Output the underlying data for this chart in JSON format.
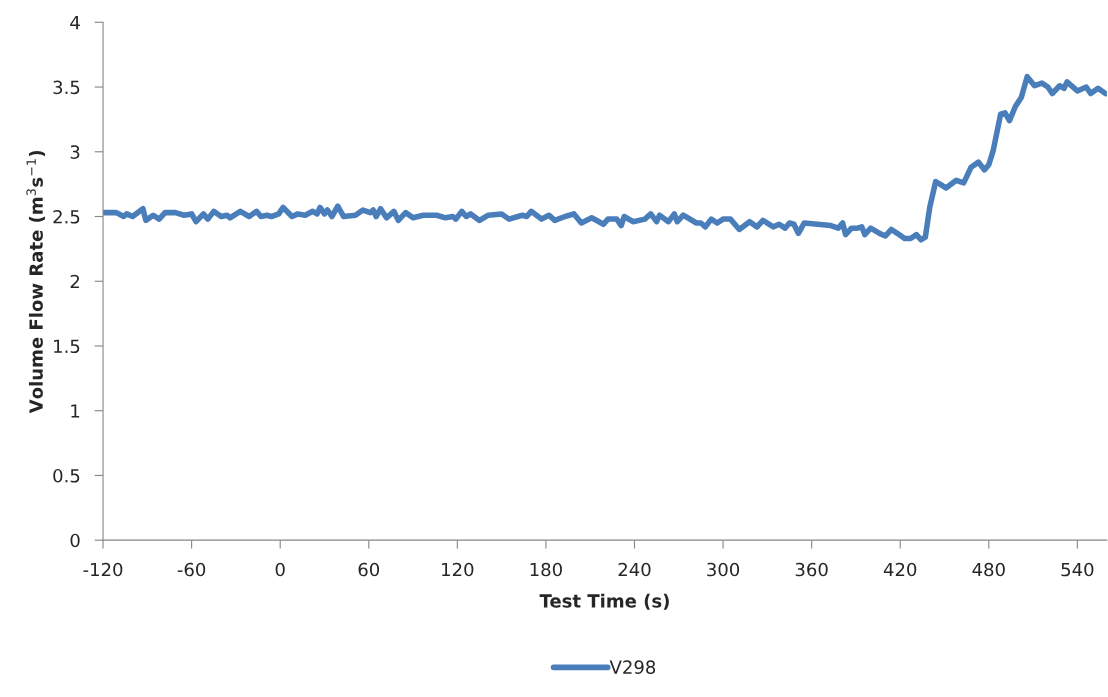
{
  "chart_data": {
    "type": "line",
    "xlabel": "Test Time (s)",
    "ylabel": "Volume Flow Rate (m$^{3}$s$^{−1}$)",
    "xlim": [
      -120,
      560
    ],
    "xticks": [
      -120,
      -60,
      0,
      60,
      120,
      180,
      240,
      300,
      360,
      420,
      480,
      540
    ],
    "ylim": [
      0,
      4
    ],
    "yticks": [
      0,
      0.5,
      1,
      1.5,
      2,
      2.5,
      3,
      3.5,
      4
    ],
    "grid": false,
    "legend": "bottom",
    "marker": "none",
    "line_style": "solid",
    "series": [
      {
        "name": "V298",
        "color": "#4a7ebb",
        "x": [
          -120,
          -111,
          -106,
          -104,
          -100,
          -93,
          -91,
          -86,
          -82,
          -78,
          -71,
          -65,
          -60,
          -57,
          -52,
          -49,
          -45,
          -40,
          -36,
          -34,
          -27,
          -21,
          -16,
          -13,
          -9,
          -6,
          -1,
          2,
          8,
          12,
          17,
          22,
          25,
          27,
          30,
          32,
          35,
          39,
          43,
          51,
          56,
          61,
          63,
          65,
          68,
          72,
          77,
          80,
          85,
          90,
          97,
          106,
          112,
          117,
          119,
          123,
          126,
          129,
          135,
          141,
          150,
          155,
          164,
          167,
          170,
          177,
          182,
          186,
          193,
          199,
          204,
          211,
          219,
          222,
          228,
          231,
          233,
          239,
          247,
          251,
          255,
          257,
          263,
          267,
          269,
          273,
          282,
          285,
          288,
          292,
          296,
          300,
          305,
          311,
          318,
          323,
          327,
          334,
          338,
          342,
          345,
          348,
          351,
          355,
          364,
          373,
          378,
          381,
          383,
          387,
          391,
          394,
          396,
          400,
          406,
          410,
          414,
          418,
          423,
          427,
          431,
          434,
          437,
          440,
          444,
          447,
          451,
          458,
          463,
          468,
          473,
          477,
          480,
          483,
          488,
          491,
          494,
          498,
          502,
          506,
          511,
          516,
          520,
          523,
          528,
          531,
          533,
          540,
          546,
          549,
          554,
          559
        ],
        "values": [
          2.53,
          2.53,
          2.5,
          2.52,
          2.5,
          2.56,
          2.47,
          2.51,
          2.48,
          2.53,
          2.53,
          2.51,
          2.52,
          2.46,
          2.52,
          2.48,
          2.54,
          2.5,
          2.51,
          2.49,
          2.54,
          2.5,
          2.54,
          2.5,
          2.51,
          2.5,
          2.52,
          2.57,
          2.5,
          2.52,
          2.51,
          2.54,
          2.52,
          2.57,
          2.52,
          2.55,
          2.5,
          2.58,
          2.5,
          2.51,
          2.55,
          2.53,
          2.55,
          2.5,
          2.56,
          2.49,
          2.54,
          2.47,
          2.53,
          2.49,
          2.51,
          2.51,
          2.49,
          2.5,
          2.48,
          2.54,
          2.5,
          2.52,
          2.47,
          2.51,
          2.52,
          2.48,
          2.51,
          2.5,
          2.54,
          2.48,
          2.51,
          2.47,
          2.5,
          2.52,
          2.45,
          2.49,
          2.44,
          2.48,
          2.48,
          2.43,
          2.5,
          2.46,
          2.48,
          2.52,
          2.46,
          2.51,
          2.46,
          2.52,
          2.46,
          2.51,
          2.45,
          2.45,
          2.42,
          2.48,
          2.45,
          2.48,
          2.48,
          2.4,
          2.46,
          2.42,
          2.47,
          2.42,
          2.44,
          2.41,
          2.45,
          2.44,
          2.37,
          2.45,
          2.44,
          2.43,
          2.41,
          2.45,
          2.36,
          2.41,
          2.41,
          2.42,
          2.36,
          2.41,
          2.37,
          2.35,
          2.4,
          2.37,
          2.33,
          2.33,
          2.36,
          2.32,
          2.34,
          2.57,
          2.77,
          2.75,
          2.72,
          2.78,
          2.76,
          2.88,
          2.92,
          2.86,
          2.9,
          3.01,
          3.29,
          3.3,
          3.24,
          3.35,
          3.42,
          3.58,
          3.51,
          3.53,
          3.5,
          3.45,
          3.51,
          3.49,
          3.54,
          3.47,
          3.5,
          3.45,
          3.49,
          3.45
        ]
      }
    ]
  }
}
